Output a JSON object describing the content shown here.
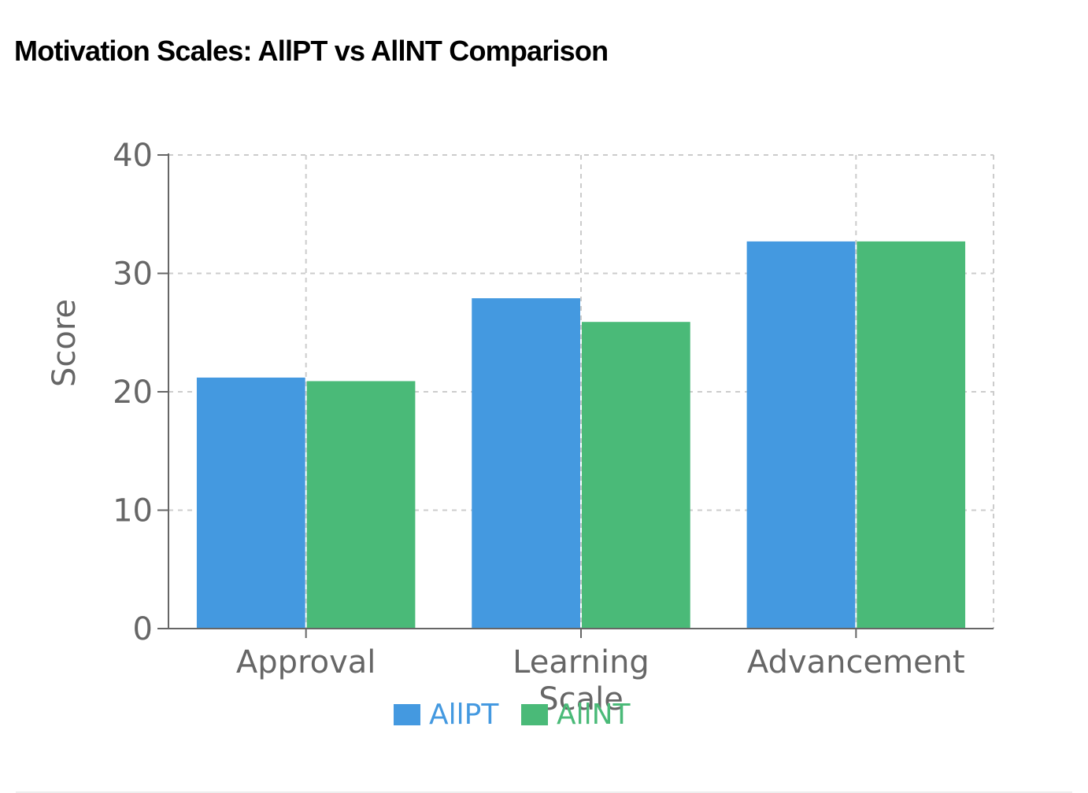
{
  "title": "Motivation Scales: AllPT vs AllNT Comparison",
  "chart_data": {
    "type": "bar",
    "categories": [
      "Approval",
      "Learning",
      "Advancement"
    ],
    "series": [
      {
        "name": "AllPT",
        "values": [
          21.2,
          27.9,
          32.7
        ],
        "color": "#4499e0"
      },
      {
        "name": "AllNT",
        "values": [
          20.9,
          25.9,
          32.7
        ],
        "color": "#4aba78"
      }
    ],
    "xlabel": "Scale",
    "ylabel": "Score",
    "ylim": [
      0,
      40
    ],
    "yticks": [
      "0",
      "10",
      "20",
      "30",
      "40"
    ],
    "grid": true,
    "legend": "bottom"
  }
}
